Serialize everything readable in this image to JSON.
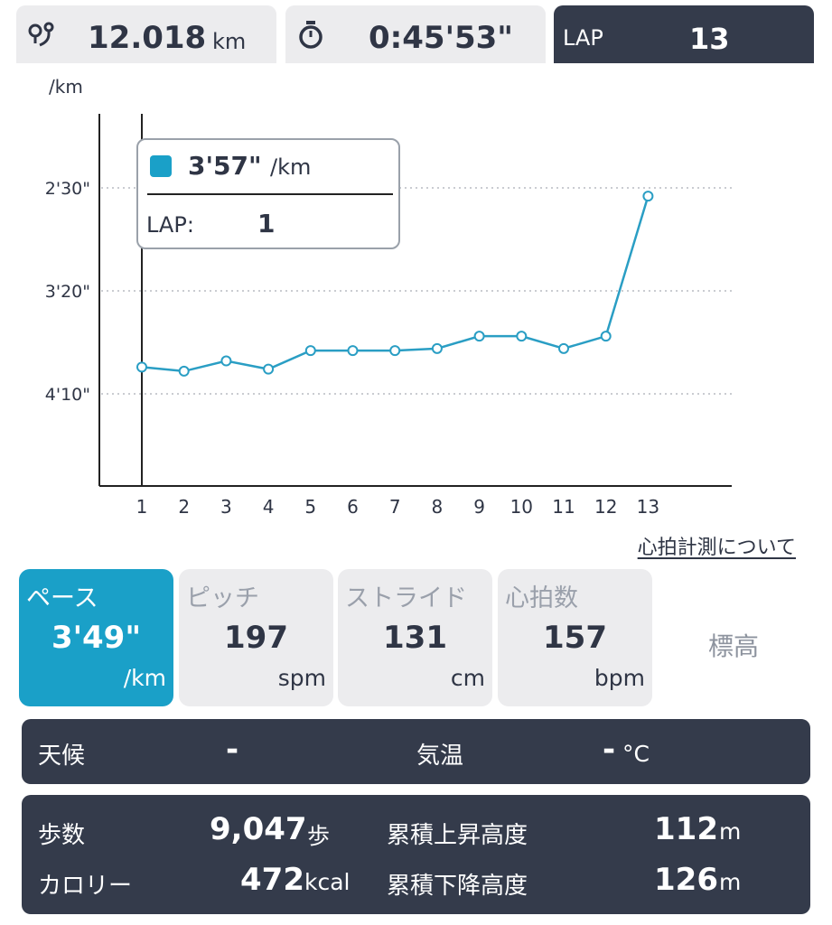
{
  "summary": {
    "distance_value": "12.018",
    "distance_unit": "km",
    "time_value": "0:45'53\"",
    "lap_label": "LAP",
    "lap_value": "13"
  },
  "chart_data": {
    "type": "line",
    "yunit_label": "/km",
    "y_ticks": [
      "2'30\"",
      "3'20\"",
      "4'10\""
    ],
    "x": [
      1,
      2,
      3,
      4,
      5,
      6,
      7,
      8,
      9,
      10,
      11,
      12,
      13
    ],
    "x_tick_labels": [
      "1",
      "2",
      "3",
      "4",
      "5",
      "6",
      "7",
      "8",
      "9",
      "10",
      "11",
      "12",
      "13"
    ],
    "series": [
      {
        "values_seconds_per_km": [
          237,
          239,
          234,
          238,
          229,
          229,
          229,
          228,
          222,
          222,
          228,
          222,
          154
        ]
      }
    ],
    "y_axis_inverted": true,
    "ylim_seconds": [
      270,
      110
    ],
    "gridlines": [
      150,
      200,
      250
    ],
    "selected_index": 0,
    "line_color": "#2a9ec4",
    "grid": true
  },
  "tooltip": {
    "value": "3'57\"",
    "unit": "/km",
    "lap_label": "LAP:",
    "lap_value": "1"
  },
  "heart_rate_link": "心拍計測について",
  "metrics": [
    {
      "label": "ペース",
      "value": "3'49\"",
      "unit": "/km",
      "active": true
    },
    {
      "label": "ピッチ",
      "value": "197",
      "unit": "spm"
    },
    {
      "label": "ストライド",
      "value": "131",
      "unit": "cm"
    },
    {
      "label": "心拍数",
      "value": "157",
      "unit": "bpm"
    }
  ],
  "elevation_tab": "標高",
  "weather": {
    "weather_label": "天候",
    "weather_value": "-",
    "temp_label": "気温",
    "temp_value": "-",
    "temp_unit": "°C"
  },
  "stats": {
    "steps_label": "歩数",
    "steps_value": "9,047",
    "steps_unit": "歩",
    "calories_label": "カロリー",
    "calories_value": "472",
    "calories_unit": "kcal",
    "ascent_label": "累積上昇高度",
    "ascent_value": "112",
    "ascent_unit": "m",
    "descent_label": "累積下降高度",
    "descent_value": "126",
    "descent_unit": "m"
  },
  "colors": {
    "accent": "#1aa0c8",
    "dark_panel": "#343b4b",
    "light_card": "#ececee"
  }
}
